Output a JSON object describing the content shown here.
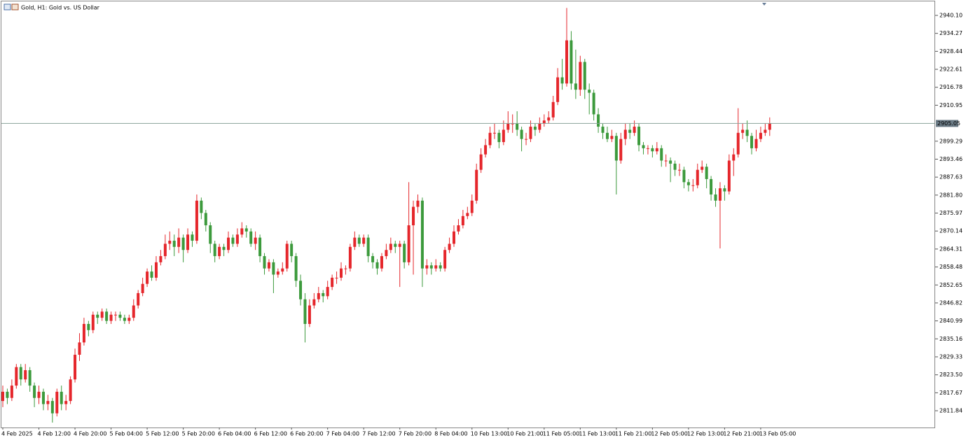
{
  "chart_data": {
    "type": "candlestick",
    "title": "Gold, H1:  Gold vs. US Dollar",
    "up_color": "#e5262b",
    "down_color": "#3c9a3c",
    "last_price_color": "#8aa39a",
    "categories": [
      "4 Feb 2025",
      null,
      null,
      null,
      null,
      null,
      null,
      null,
      "4 Feb 12:00",
      null,
      null,
      null,
      null,
      null,
      null,
      null,
      "4 Feb 20:00",
      null,
      null,
      null,
      null,
      null,
      null,
      null,
      "5 Feb 04:00",
      null,
      null,
      null,
      null,
      null,
      null,
      null,
      "5 Feb 12:00",
      null,
      null,
      null,
      null,
      null,
      null,
      null,
      "5 Feb 20:00",
      null,
      null,
      null,
      null,
      null,
      null,
      null,
      "6 Feb 04:00",
      null,
      null,
      null,
      null,
      null,
      null,
      null,
      "6 Feb 12:00",
      null,
      null,
      null,
      null,
      null,
      null,
      null,
      "6 Feb 20:00",
      null,
      null,
      null,
      null,
      null,
      null,
      null,
      "7 Feb 04:00",
      null,
      null,
      null,
      null,
      null,
      null,
      null,
      "7 Feb 12:00",
      null,
      null,
      null,
      null,
      null,
      null,
      null,
      "7 Feb 20:00",
      null,
      null,
      null,
      null,
      null,
      null,
      null,
      "8 Feb 04:00",
      null,
      null,
      null,
      null,
      null,
      null,
      null,
      "10 Feb 13:00",
      null,
      null,
      null,
      null,
      null,
      null,
      null,
      "10 Feb 21:00",
      null,
      null,
      null,
      null,
      null,
      null,
      null,
      "11 Feb 05:00",
      null,
      null,
      null,
      null,
      null,
      null,
      null,
      "11 Feb 13:00",
      null,
      null,
      null,
      null,
      null,
      null,
      null,
      "11 Feb 21:00",
      null,
      null,
      null,
      null,
      null,
      null,
      null,
      "12 Feb 05:00",
      null,
      null,
      null,
      null,
      null,
      null,
      null,
      "12 Feb 13:00",
      null,
      null,
      null,
      null,
      null,
      null,
      null,
      "12 Feb 21:00",
      null,
      null,
      null,
      null,
      null,
      null,
      null,
      "13 Feb 05:00",
      null,
      null
    ],
    "open": [
      2815,
      2818,
      2816,
      2820,
      2826,
      2822,
      2825,
      2820,
      2816,
      2818,
      2814,
      2815,
      2811,
      2818,
      2814,
      2815,
      2822,
      2830,
      2834,
      2840,
      2838,
      2843,
      2842,
      2844,
      2841,
      2843,
      2843,
      2842,
      2841,
      2842,
      2846,
      2850,
      2853,
      2857,
      2855,
      2860,
      2862,
      2866,
      2867,
      2865,
      2868,
      2864,
      2869,
      2867,
      2880,
      2876,
      2872,
      2866,
      2862,
      2865,
      2864,
      2868,
      2866,
      2869,
      2871,
      2870,
      2866,
      2868,
      2862,
      2858,
      2860,
      2856,
      2857,
      2858,
      2866,
      2862,
      2854,
      2848,
      2840,
      2846,
      2848,
      2850,
      2849,
      2852,
      2855,
      2855,
      2858,
      2858,
      2865,
      2868,
      2866,
      2868,
      2862,
      2860,
      2858,
      2862,
      2864,
      2866,
      2865,
      2866,
      2860,
      2872,
      2878,
      2880,
      2858,
      2859,
      2858,
      2859,
      2858,
      2864,
      2866,
      2870,
      2872,
      2875,
      2876,
      2880,
      2890,
      2895,
      2898,
      2902,
      2902,
      2899,
      2903,
      2905,
      2905,
      2903,
      2900,
      2900,
      2904,
      2903,
      2905,
      2906,
      2907,
      2912,
      2920,
      2918,
      2932,
      2918,
      2916,
      2925,
      2916,
      2915,
      2908,
      2904,
      2902,
      2900,
      2901,
      2893,
      2900,
      2903,
      2902,
      2904,
      2898,
      2897,
      2897,
      2896,
      2897,
      2893,
      2893,
      2892,
      2890,
      2890,
      2886,
      2885,
      2885,
      2890,
      2891,
      2887,
      2882,
      2880,
      2884,
      2883,
      2893,
      2895,
      2902,
      2903,
      2901,
      2897,
      2900,
      2902,
      2903
    ],
    "high": [
      2820,
      2819,
      2822,
      2827,
      2827,
      2827,
      2826,
      2821,
      2820,
      2819,
      2817,
      2816,
      2819,
      2820,
      2817,
      2823,
      2832,
      2837,
      2842,
      2841,
      2844,
      2844,
      2845,
      2845,
      2844,
      2844,
      2844,
      2843,
      2843,
      2848,
      2851,
      2855,
      2858,
      2859,
      2862,
      2864,
      2869,
      2870,
      2869,
      2871,
      2869,
      2871,
      2870,
      2882,
      2881,
      2877,
      2873,
      2867,
      2866,
      2866,
      2870,
      2869,
      2871,
      2873,
      2872,
      2871,
      2870,
      2869,
      2863,
      2861,
      2861,
      2858,
      2860,
      2867,
      2867,
      2863,
      2856,
      2850,
      2848,
      2850,
      2852,
      2851,
      2854,
      2856,
      2857,
      2860,
      2859,
      2866,
      2870,
      2869,
      2869,
      2869,
      2863,
      2861,
      2863,
      2866,
      2868,
      2867,
      2867,
      2867,
      2886,
      2880,
      2882,
      2881,
      2861,
      2860,
      2861,
      2860,
      2865,
      2868,
      2872,
      2874,
      2877,
      2878,
      2882,
      2892,
      2897,
      2900,
      2904,
      2905,
      2903,
      2906,
      2909,
      2908,
      2909,
      2904,
      2902,
      2906,
      2905,
      2907,
      2908,
      2909,
      2914,
      2923,
      2926,
      2942.5,
      2935,
      2929,
      2927,
      2926,
      2918,
      2916,
      2910,
      2905,
      2904,
      2903,
      2902,
      2902,
      2905,
      2905,
      2906,
      2905,
      2899,
      2898,
      2898,
      2899,
      2898,
      2895,
      2894,
      2893,
      2892,
      2891,
      2887,
      2887,
      2892,
      2893,
      2892,
      2888,
      2884,
      2886,
      2885,
      2895,
      2897,
      2910,
      2905,
      2906,
      2902,
      2903,
      2904,
      2905,
      2907
    ],
    "low": [
      2813,
      2814,
      2815,
      2819,
      2820,
      2821,
      2818,
      2813,
      2814,
      2812,
      2812,
      2808,
      2810,
      2812,
      2812,
      2814,
      2821,
      2828,
      2833,
      2836,
      2837,
      2840,
      2841,
      2840,
      2840,
      2841,
      2841,
      2840,
      2840,
      2841,
      2845,
      2849,
      2852,
      2854,
      2854,
      2859,
      2861,
      2864,
      2862,
      2863,
      2860,
      2863,
      2865,
      2866,
      2874,
      2870,
      2863,
      2860,
      2861,
      2862,
      2863,
      2865,
      2865,
      2868,
      2868,
      2865,
      2864,
      2860,
      2856,
      2857,
      2850,
      2855,
      2856,
      2857,
      2860,
      2852,
      2846,
      2834,
      2839,
      2845,
      2847,
      2847,
      2848,
      2851,
      2853,
      2854,
      2856,
      2857,
      2864,
      2865,
      2865,
      2860,
      2858,
      2856,
      2857,
      2861,
      2863,
      2863,
      2852,
      2858,
      2859,
      2856,
      2876,
      2852,
      2856,
      2856,
      2857,
      2857,
      2857,
      2863,
      2865,
      2869,
      2871,
      2874,
      2875,
      2879,
      2889,
      2894,
      2897,
      2900,
      2897,
      2898,
      2902,
      2902,
      2901,
      2896,
      2898,
      2899,
      2901,
      2902,
      2904,
      2905,
      2906,
      2911,
      2916,
      2917,
      2916,
      2913,
      2914,
      2913,
      2908,
      2906,
      2902,
      2900,
      2899,
      2899,
      2882,
      2892,
      2898,
      2900,
      2901,
      2896,
      2895,
      2895,
      2894,
      2895,
      2891,
      2891,
      2886,
      2888,
      2888,
      2884,
      2883,
      2883,
      2884,
      2889,
      2884,
      2880,
      2878,
      2864.5,
      2880,
      2882,
      2888,
      2894,
      2900,
      2899,
      2895,
      2896,
      2899,
      2901,
      2901
    ],
    "close": [
      2818,
      2816,
      2820,
      2826,
      2822,
      2825,
      2820,
      2816,
      2818,
      2814,
      2815,
      2811,
      2818,
      2814,
      2815,
      2822,
      2830,
      2834,
      2840,
      2838,
      2843,
      2842,
      2844,
      2841,
      2843,
      2843,
      2842,
      2841,
      2842,
      2846,
      2850,
      2853,
      2857,
      2855,
      2860,
      2862,
      2866,
      2867,
      2865,
      2868,
      2864,
      2869,
      2867,
      2880,
      2876,
      2872,
      2866,
      2862,
      2865,
      2864,
      2868,
      2866,
      2869,
      2871,
      2870,
      2866,
      2868,
      2862,
      2858,
      2860,
      2856,
      2857,
      2858,
      2866,
      2862,
      2854,
      2848,
      2840,
      2846,
      2848,
      2850,
      2849,
      2852,
      2855,
      2855,
      2858,
      2858,
      2865,
      2868,
      2866,
      2868,
      2862,
      2860,
      2858,
      2862,
      2864,
      2866,
      2865,
      2866,
      2860,
      2872,
      2878,
      2880,
      2858,
      2859,
      2858,
      2859,
      2858,
      2864,
      2866,
      2870,
      2872,
      2875,
      2876,
      2880,
      2890,
      2895,
      2898,
      2902,
      2902,
      2899,
      2903,
      2905,
      2905,
      2903,
      2900,
      2900,
      2904,
      2903,
      2905,
      2906,
      2907,
      2912,
      2920,
      2918,
      2932,
      2918,
      2916,
      2925,
      2916,
      2915,
      2908,
      2904,
      2902,
      2900,
      2901,
      2893,
      2900,
      2903,
      2902,
      2904,
      2898,
      2897,
      2897,
      2896,
      2897,
      2893,
      2893,
      2892,
      2890,
      2890,
      2886,
      2885,
      2885,
      2890,
      2891,
      2887,
      2882,
      2880,
      2884,
      2883,
      2893,
      2895,
      2902,
      2903,
      2901,
      2897,
      2900,
      2902,
      2903,
      2905.05
    ],
    "last_price": 2905.05,
    "ylim": [
      2806.4,
      2944.64
    ],
    "yticks": [
      {
        "value": 2940.1,
        "label": "2940.10"
      },
      2934.27,
      2928.44,
      2922.61,
      2916.78,
      2910.95,
      2899.29,
      2893.46,
      2887.63,
      {
        "value": 2881.8,
        "label": "2881.80"
      },
      2875.97,
      2870.14,
      2864.31,
      2858.48,
      2852.65,
      2846.82,
      2840.99,
      2835.16,
      2829.33,
      {
        "value": 2823.5,
        "label": "2823.50"
      },
      2817.67,
      2811.84
    ]
  }
}
